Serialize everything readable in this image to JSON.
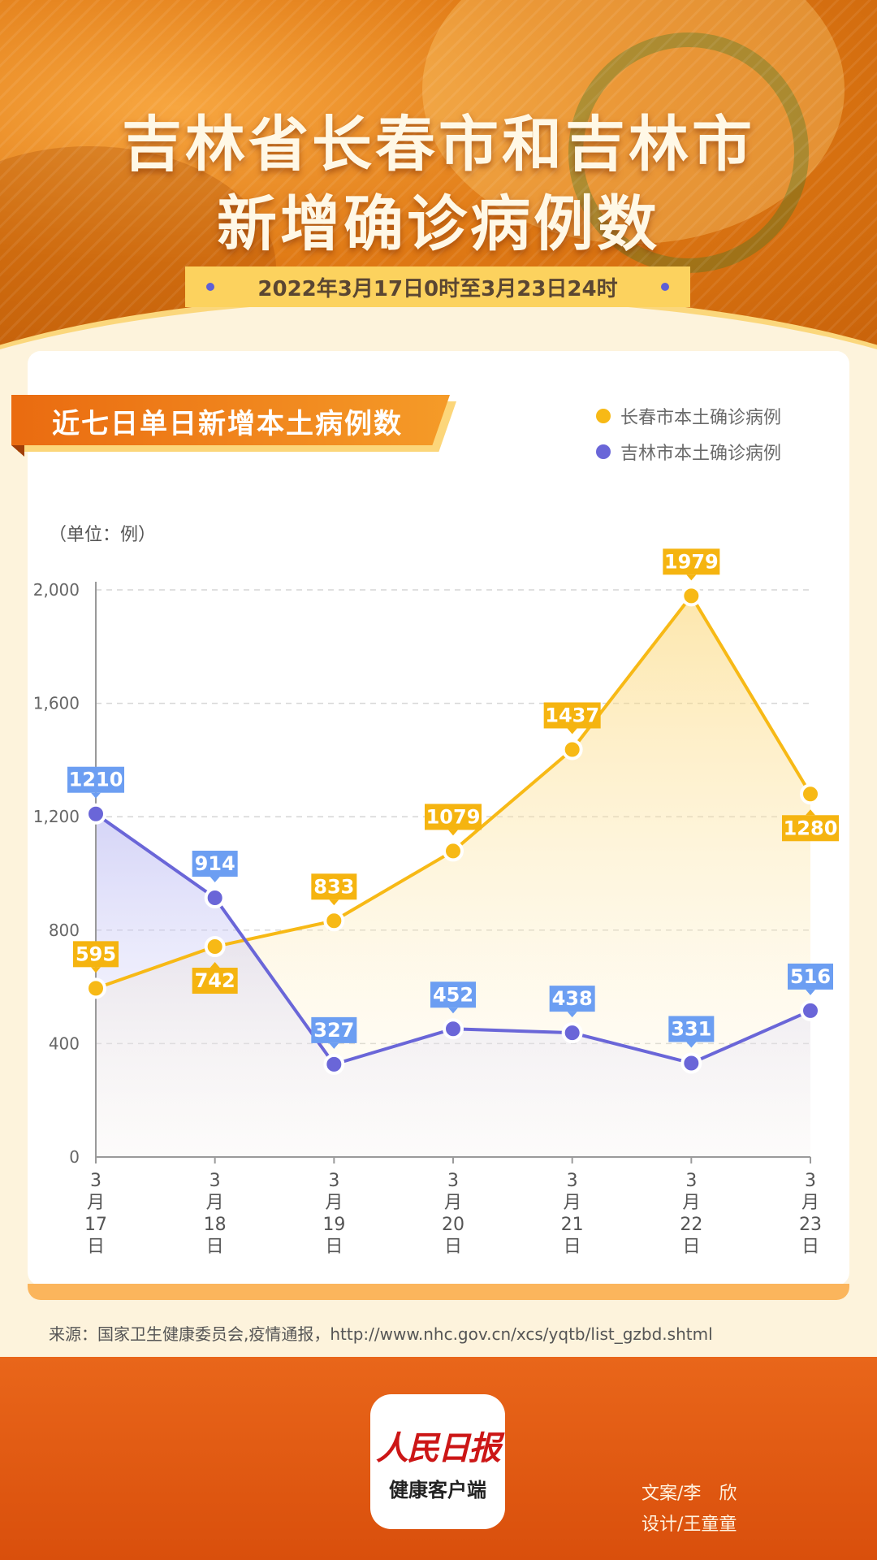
{
  "header": {
    "title_line1": "吉林省长春市和吉林市",
    "title_line2": "新增确诊病例数",
    "date_range": "2022年3月17日0时至3月23日24时"
  },
  "card": {
    "section_title": "近七日单日新增本土病例数",
    "unit": "（单位：例）"
  },
  "chart_data": {
    "type": "line",
    "categories": [
      "3月17日",
      "3月18日",
      "3月19日",
      "3月20日",
      "3月21日",
      "3月22日",
      "3月23日"
    ],
    "category_parts": [
      [
        "3",
        "月",
        "17",
        "日"
      ],
      [
        "3",
        "月",
        "18",
        "日"
      ],
      [
        "3",
        "月",
        "19",
        "日"
      ],
      [
        "3",
        "月",
        "20",
        "日"
      ],
      [
        "3",
        "月",
        "21",
        "日"
      ],
      [
        "3",
        "月",
        "22",
        "日"
      ],
      [
        "3",
        "月",
        "23",
        "日"
      ]
    ],
    "series": [
      {
        "name": "长春市本土确诊病例",
        "color": "#f7b916",
        "label_color": "#f5b410",
        "values": [
          595,
          742,
          833,
          1079,
          1437,
          1979,
          1280
        ]
      },
      {
        "name": "吉林市本土确诊病例",
        "color": "#6a66d8",
        "label_color": "#6c9ef2",
        "values": [
          1210,
          914,
          327,
          452,
          438,
          331,
          516
        ]
      }
    ],
    "y_ticks": [
      "0",
      "400",
      "800",
      "1,200",
      "1,600",
      "2,000"
    ],
    "ylim": [
      0,
      2000
    ],
    "grid": true,
    "legend_position": "top-right"
  },
  "footer": {
    "source": "来源：国家卫生健康委员会,疫情通报，http://www.nhc.gov.cn/xcs/yqtb/list_gzbd.shtml",
    "logo_text": "人民日报",
    "logo_sub": "健康客户端",
    "credit_copy": "文案/李　欣",
    "credit_design": "设计/王童童"
  }
}
